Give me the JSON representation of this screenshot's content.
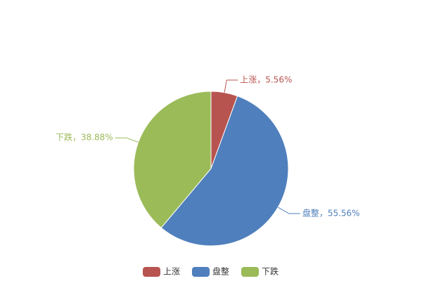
{
  "chart_data": {
    "type": "pie",
    "categories": [
      "上涨",
      "盘整",
      "下跌"
    ],
    "values": [
      5.56,
      55.56,
      38.88
    ],
    "value_labels": [
      "上涨，5.56%",
      "盘整，55.56%",
      "下跌，38.88%"
    ],
    "colors": [
      "#b85450",
      "#4f7fbc",
      "#9bbb59"
    ],
    "legend": "bottom"
  }
}
